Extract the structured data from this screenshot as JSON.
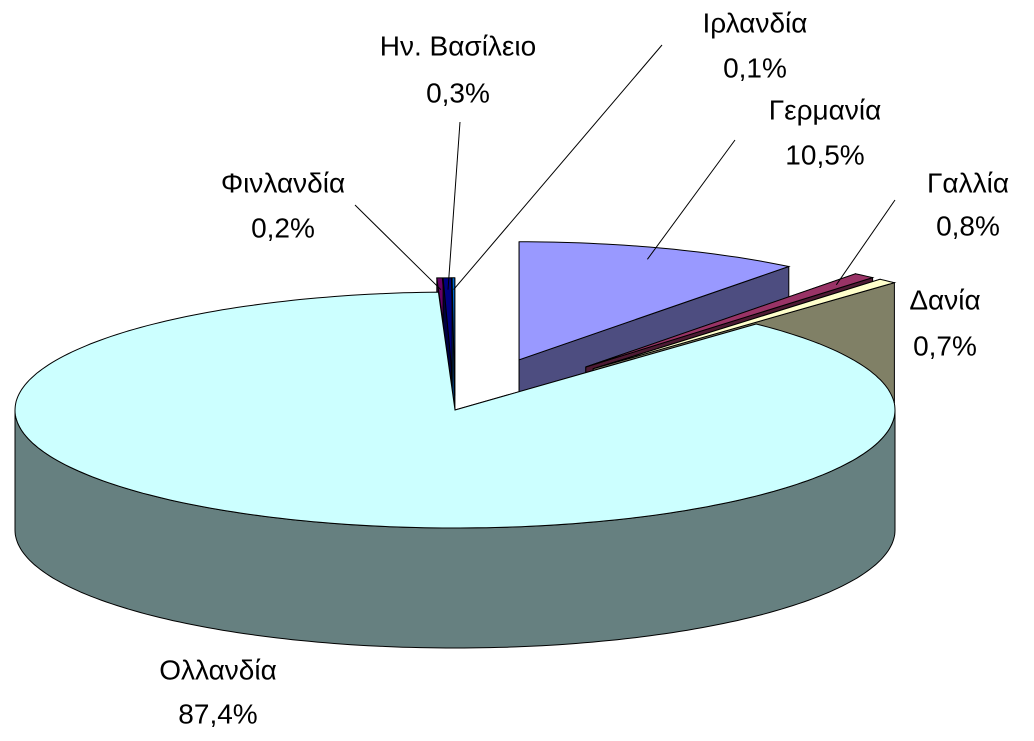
{
  "chart_data": {
    "type": "pie",
    "categories": [
      "Γερμανία",
      "Γαλλία",
      "Δανία",
      "Ολλανδία",
      "Φινλανδία",
      "Ην. Βασίλειο",
      "Ιρλανδία"
    ],
    "values": [
      10.5,
      0.8,
      0.7,
      87.4,
      0.2,
      0.3,
      0.1
    ],
    "value_labels": [
      "10,5%",
      "0,8%",
      "0,7%",
      "87,4%",
      "0,2%",
      "0,3%",
      "0,1%"
    ],
    "colors": [
      "#9999ff",
      "#993366",
      "#ffffcc",
      "#ccffff",
      "#660066",
      "#000080",
      "#0066cc"
    ]
  }
}
